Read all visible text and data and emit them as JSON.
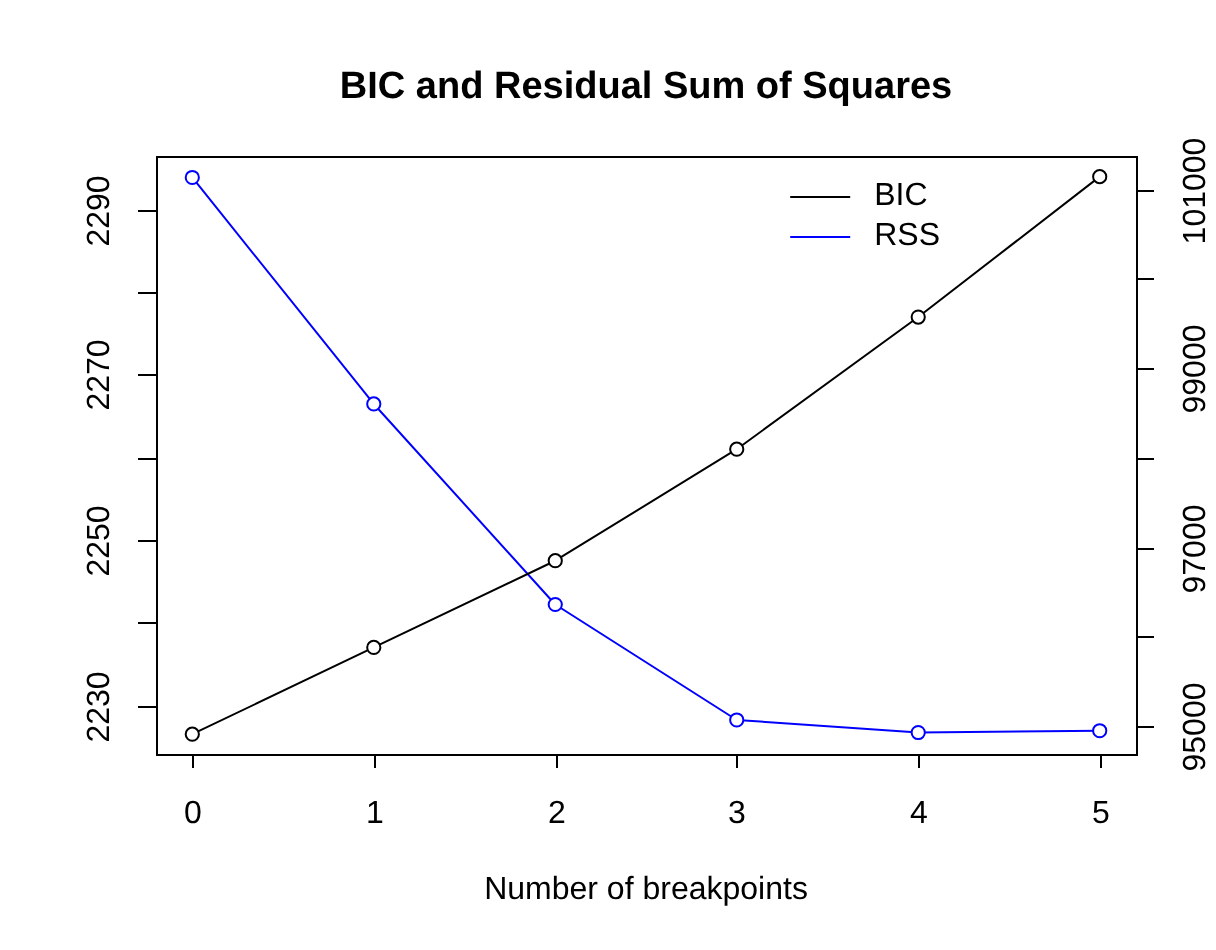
{
  "chart_data": {
    "type": "line",
    "title": "BIC and Residual Sum of Squares",
    "xlabel": "Number of breakpoints",
    "x": [
      0,
      1,
      2,
      3,
      4,
      5
    ],
    "series": [
      {
        "name": "BIC",
        "color": "#000000",
        "values": [
          2226.5,
          2237,
          2247.5,
          2261,
          2277,
          2294
        ]
      },
      {
        "name": "RSS",
        "color": "#0000ff",
        "axis": "y2",
        "values": [
          101130,
          98600,
          96360,
          95070,
          94930,
          94950
        ]
      }
    ],
    "xlim": [
      -0.2,
      5.2
    ],
    "xticks": [
      0,
      1,
      2,
      3,
      4,
      5
    ],
    "ylim": [
      2224.1,
      2296.5
    ],
    "yticks": [
      2230,
      {
        "value": 2240,
        "label": null
      },
      2250,
      {
        "value": 2260,
        "label": null
      },
      2270,
      {
        "value": 2280,
        "label": null
      },
      2290
    ],
    "y2lim": [
      94690,
      101370
    ],
    "y2ticks": [
      95000,
      {
        "value": 96000,
        "label": null
      },
      97000,
      {
        "value": 98000,
        "label": null
      },
      99000,
      {
        "value": 100000,
        "label": null
      },
      101000
    ],
    "marker": "circle",
    "legend": "top right"
  }
}
